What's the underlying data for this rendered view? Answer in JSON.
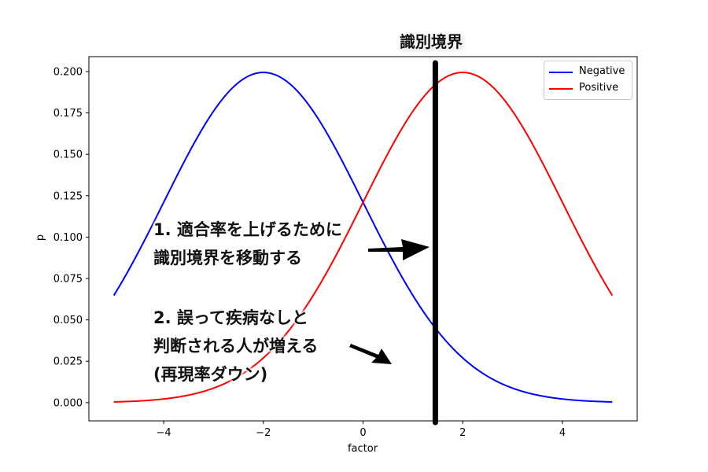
{
  "chart_data": {
    "type": "line",
    "title": "",
    "xlabel": "factor",
    "ylabel": "p",
    "xlim": [
      -5.5,
      5.5
    ],
    "ylim": [
      -0.011,
      0.209
    ],
    "xticks": [
      -4,
      -2,
      0,
      2,
      4
    ],
    "xtick_labels": [
      "−4",
      "−2",
      "0",
      "2",
      "4"
    ],
    "yticks": [
      0.0,
      0.025,
      0.05,
      0.075,
      0.1,
      0.125,
      0.15,
      0.175,
      0.2
    ],
    "ytick_labels": [
      "0.000",
      "0.025",
      "0.050",
      "0.075",
      "0.100",
      "0.125",
      "0.150",
      "0.175",
      "0.200"
    ],
    "grid": false,
    "legend_position": "top-right",
    "series": [
      {
        "name": "Negative",
        "color": "#0000ff",
        "distribution": "normal",
        "mean": -2,
        "std": 2,
        "x_range": [
          -5,
          5
        ]
      },
      {
        "name": "Positive",
        "color": "#ff0000",
        "distribution": "normal",
        "mean": 2,
        "std": 2,
        "x_range": [
          -5,
          5
        ]
      }
    ],
    "decision_boundary": {
      "label": "識別境界",
      "x": 1.45,
      "color": "#000000"
    },
    "annotations": [
      {
        "lines": [
          "1. 適合率を上げるために",
          "識別境界を移動する"
        ]
      },
      {
        "lines": [
          "2. 誤って疾病なしと",
          "判断される人が増える",
          "(再現率ダウン)"
        ]
      }
    ]
  }
}
